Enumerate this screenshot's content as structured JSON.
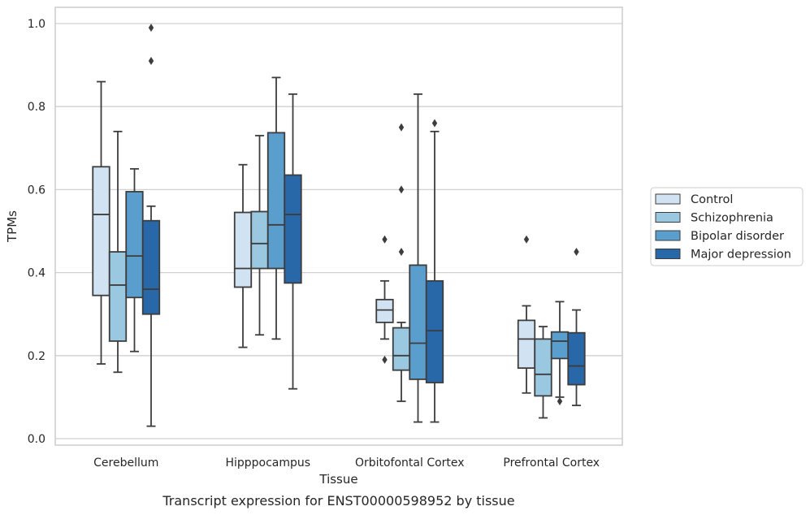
{
  "chart_data": {
    "type": "box",
    "caption": "Transcript expression for ENST00000598952 by tissue",
    "xlabel": "Tissue",
    "ylabel": "TPMs",
    "ylim": [
      -0.015,
      1.04
    ],
    "yticks": [
      0.0,
      0.2,
      0.4,
      0.6,
      0.8,
      1.0
    ],
    "ytick_labels": [
      "0.0",
      "0.2",
      "0.4",
      "0.6",
      "0.8",
      "1.0"
    ],
    "grid": "horizontal",
    "legend_position": "right",
    "categories": [
      "Cerebellum",
      "Hipppocampus",
      "Orbitofontal Cortex",
      "Prefrontal Cortex"
    ],
    "series": [
      {
        "name": "Control",
        "color": "#d1e2f2",
        "boxes": [
          {
            "whislo": 0.18,
            "q1": 0.345,
            "median": 0.54,
            "q3": 0.655,
            "whishi": 0.86,
            "fliers": []
          },
          {
            "whislo": 0.22,
            "q1": 0.365,
            "median": 0.41,
            "q3": 0.545,
            "whishi": 0.66,
            "fliers": []
          },
          {
            "whislo": 0.24,
            "q1": 0.28,
            "median": 0.31,
            "q3": 0.335,
            "whishi": 0.38,
            "fliers": [
              0.48,
              0.19
            ]
          },
          {
            "whislo": 0.11,
            "q1": 0.17,
            "median": 0.24,
            "q3": 0.285,
            "whishi": 0.32,
            "fliers": [
              0.48
            ]
          }
        ]
      },
      {
        "name": "Schizophrenia",
        "color": "#9ac8e0",
        "boxes": [
          {
            "whislo": 0.16,
            "q1": 0.235,
            "median": 0.37,
            "q3": 0.45,
            "whishi": 0.74,
            "fliers": []
          },
          {
            "whislo": 0.25,
            "q1": 0.41,
            "median": 0.47,
            "q3": 0.547,
            "whishi": 0.73,
            "fliers": []
          },
          {
            "whislo": 0.09,
            "q1": 0.165,
            "median": 0.2,
            "q3": 0.267,
            "whishi": 0.28,
            "fliers": [
              0.75,
              0.6,
              0.45
            ]
          },
          {
            "whislo": 0.05,
            "q1": 0.103,
            "median": 0.155,
            "q3": 0.24,
            "whishi": 0.27,
            "fliers": []
          }
        ]
      },
      {
        "name": "Bipolar disorder",
        "color": "#5a9ecd",
        "boxes": [
          {
            "whislo": 0.21,
            "q1": 0.34,
            "median": 0.44,
            "q3": 0.595,
            "whishi": 0.65,
            "fliers": []
          },
          {
            "whislo": 0.24,
            "q1": 0.41,
            "median": 0.515,
            "q3": 0.737,
            "whishi": 0.87,
            "fliers": []
          },
          {
            "whislo": 0.04,
            "q1": 0.143,
            "median": 0.23,
            "q3": 0.418,
            "whishi": 0.83,
            "fliers": []
          },
          {
            "whislo": 0.1,
            "q1": 0.193,
            "median": 0.235,
            "q3": 0.257,
            "whishi": 0.33,
            "fliers": [
              0.09
            ]
          }
        ]
      },
      {
        "name": "Major depression",
        "color": "#2867a8",
        "boxes": [
          {
            "whislo": 0.03,
            "q1": 0.3,
            "median": 0.36,
            "q3": 0.525,
            "whishi": 0.56,
            "fliers": [
              0.99,
              0.91
            ]
          },
          {
            "whislo": 0.12,
            "q1": 0.375,
            "median": 0.54,
            "q3": 0.635,
            "whishi": 0.83,
            "fliers": []
          },
          {
            "whislo": 0.04,
            "q1": 0.135,
            "median": 0.26,
            "q3": 0.38,
            "whishi": 0.74,
            "fliers": [
              0.76
            ]
          },
          {
            "whislo": 0.08,
            "q1": 0.13,
            "median": 0.175,
            "q3": 0.255,
            "whishi": 0.31,
            "fliers": [
              0.45
            ]
          }
        ]
      }
    ]
  }
}
